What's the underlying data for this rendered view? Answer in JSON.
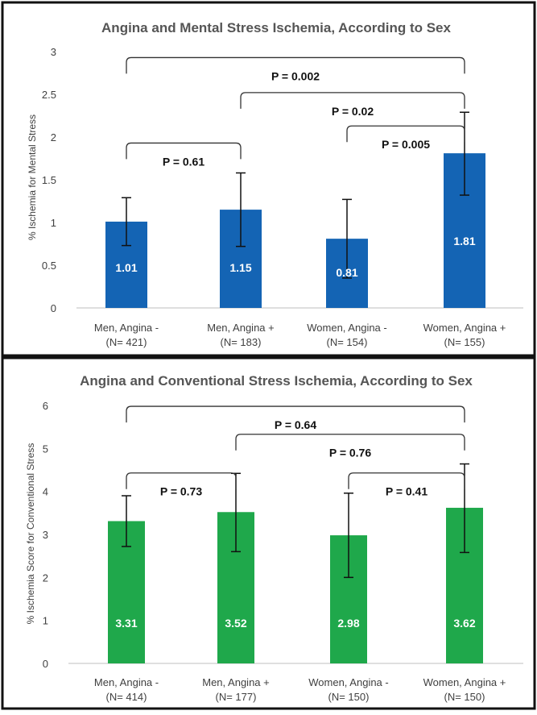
{
  "colors": {
    "mental_bar": "#1464b4",
    "conventional_bar": "#1fa84b",
    "frame": "#111111",
    "title_text": "#555555",
    "axis_text": "#404040",
    "bar_label_text": "#ffffff",
    "bracket": "#333333"
  },
  "chart_data": [
    {
      "type": "bar",
      "title": "Angina and  Mental Stress Ischemia, According to Sex",
      "ylabel": "% Ischemia for Mental Stress",
      "xlabel": "",
      "ylim": [
        0,
        3
      ],
      "yticks": [
        "0",
        "0.5",
        "1",
        "1.5",
        "2",
        "2.5",
        "3"
      ],
      "grid": false,
      "categories": [
        [
          "Men, Angina -",
          "(N= 421)"
        ],
        [
          "Men, Angina +",
          "(N= 183)"
        ],
        [
          "Women, Angina -",
          "(N= 154)"
        ],
        [
          "Women, Angina +",
          "(N= 155)"
        ]
      ],
      "values": [
        1.01,
        1.15,
        0.81,
        1.81
      ],
      "value_labels": [
        "1.01",
        "1.15",
        "0.81",
        "1.81"
      ],
      "error_bars": [
        [
          0.73,
          1.29
        ],
        [
          0.72,
          1.58
        ],
        [
          0.35,
          1.27
        ],
        [
          1.32,
          2.29
        ]
      ],
      "comparisons": [
        {
          "from": 0,
          "to": 3,
          "level": 2.93,
          "label": "P = 0.002"
        },
        {
          "from": 1,
          "to": 3,
          "level": 2.52,
          "label": "P = 0.02"
        },
        {
          "from": 2,
          "to": 3,
          "level": 2.13,
          "label": "P = 0.005"
        },
        {
          "from": 0,
          "to": 1,
          "level": 1.93,
          "label": "P = 0.61"
        }
      ]
    },
    {
      "type": "bar",
      "title": "Angina and Conventional Stress Ischemia, According to Sex",
      "ylabel": "% Ischemia Score for Conventional Stress",
      "xlabel": "",
      "ylim": [
        0,
        6
      ],
      "yticks": [
        "0",
        "1",
        "2",
        "3",
        "4",
        "5",
        "6"
      ],
      "grid": false,
      "categories": [
        [
          "Men, Angina -",
          "(N= 414)"
        ],
        [
          "Men, Angina +",
          "(N= 177)"
        ],
        [
          "Women, Angina -",
          "(N= 150)"
        ],
        [
          "Women, Angina +",
          "(N= 150)"
        ]
      ],
      "values": [
        3.31,
        3.52,
        2.98,
        3.62
      ],
      "value_labels": [
        "3.31",
        "3.52",
        "2.98",
        "3.62"
      ],
      "error_bars": [
        [
          2.72,
          3.9
        ],
        [
          2.6,
          4.42
        ],
        [
          2.0,
          3.96
        ],
        [
          2.58,
          4.64
        ]
      ],
      "comparisons": [
        {
          "from": 0,
          "to": 3,
          "level": 5.98,
          "label": "P = 0.64"
        },
        {
          "from": 1,
          "to": 3,
          "level": 5.33,
          "label": "P = 0.76"
        },
        {
          "from": 2,
          "to": 3,
          "level": 4.43,
          "label": "P = 0.41"
        },
        {
          "from": 0,
          "to": 1,
          "level": 4.43,
          "label": "P = 0.73"
        }
      ]
    }
  ]
}
